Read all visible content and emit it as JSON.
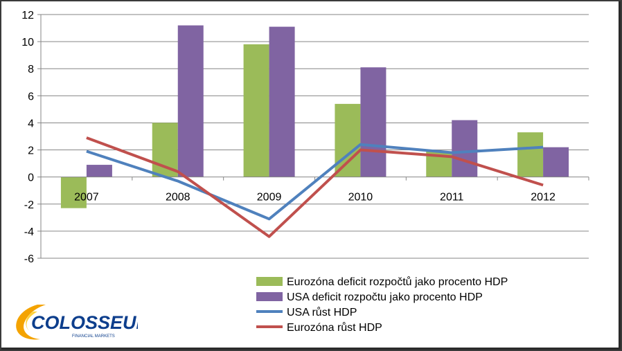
{
  "chart_data": {
    "type": "bar",
    "categories": [
      "2007",
      "2008",
      "2009",
      "2010",
      "2011",
      "2012"
    ],
    "ylim": [
      -6,
      12
    ],
    "yticks": [
      -6,
      -4,
      -2,
      0,
      2,
      4,
      6,
      8,
      10,
      12
    ],
    "grid": true,
    "legend_position": "bottom-right",
    "bar_series": [
      {
        "name": "Eurozóna deficit rozpočtů jako procento HDP",
        "color": "#9bbb59",
        "values": [
          -2.3,
          4.0,
          9.8,
          5.4,
          1.9,
          3.3
        ]
      },
      {
        "name": "USA deficit rozpočtu jako procento HDP",
        "color": "#8064a2",
        "values": [
          0.9,
          11.2,
          11.1,
          8.1,
          4.2,
          2.2
        ]
      }
    ],
    "line_series": [
      {
        "name": "USA růst HDP",
        "color": "#4f81bd",
        "values": [
          1.9,
          -0.3,
          -3.1,
          2.4,
          1.8,
          2.2
        ]
      },
      {
        "name": "Eurozóna růst HDP",
        "color": "#c0504d",
        "values": [
          2.9,
          0.4,
          -4.4,
          2.0,
          1.5,
          -0.6
        ]
      }
    ]
  },
  "logo": {
    "name": "COLOSSEUM",
    "tagline": "FINANCIAL MARKETS"
  }
}
